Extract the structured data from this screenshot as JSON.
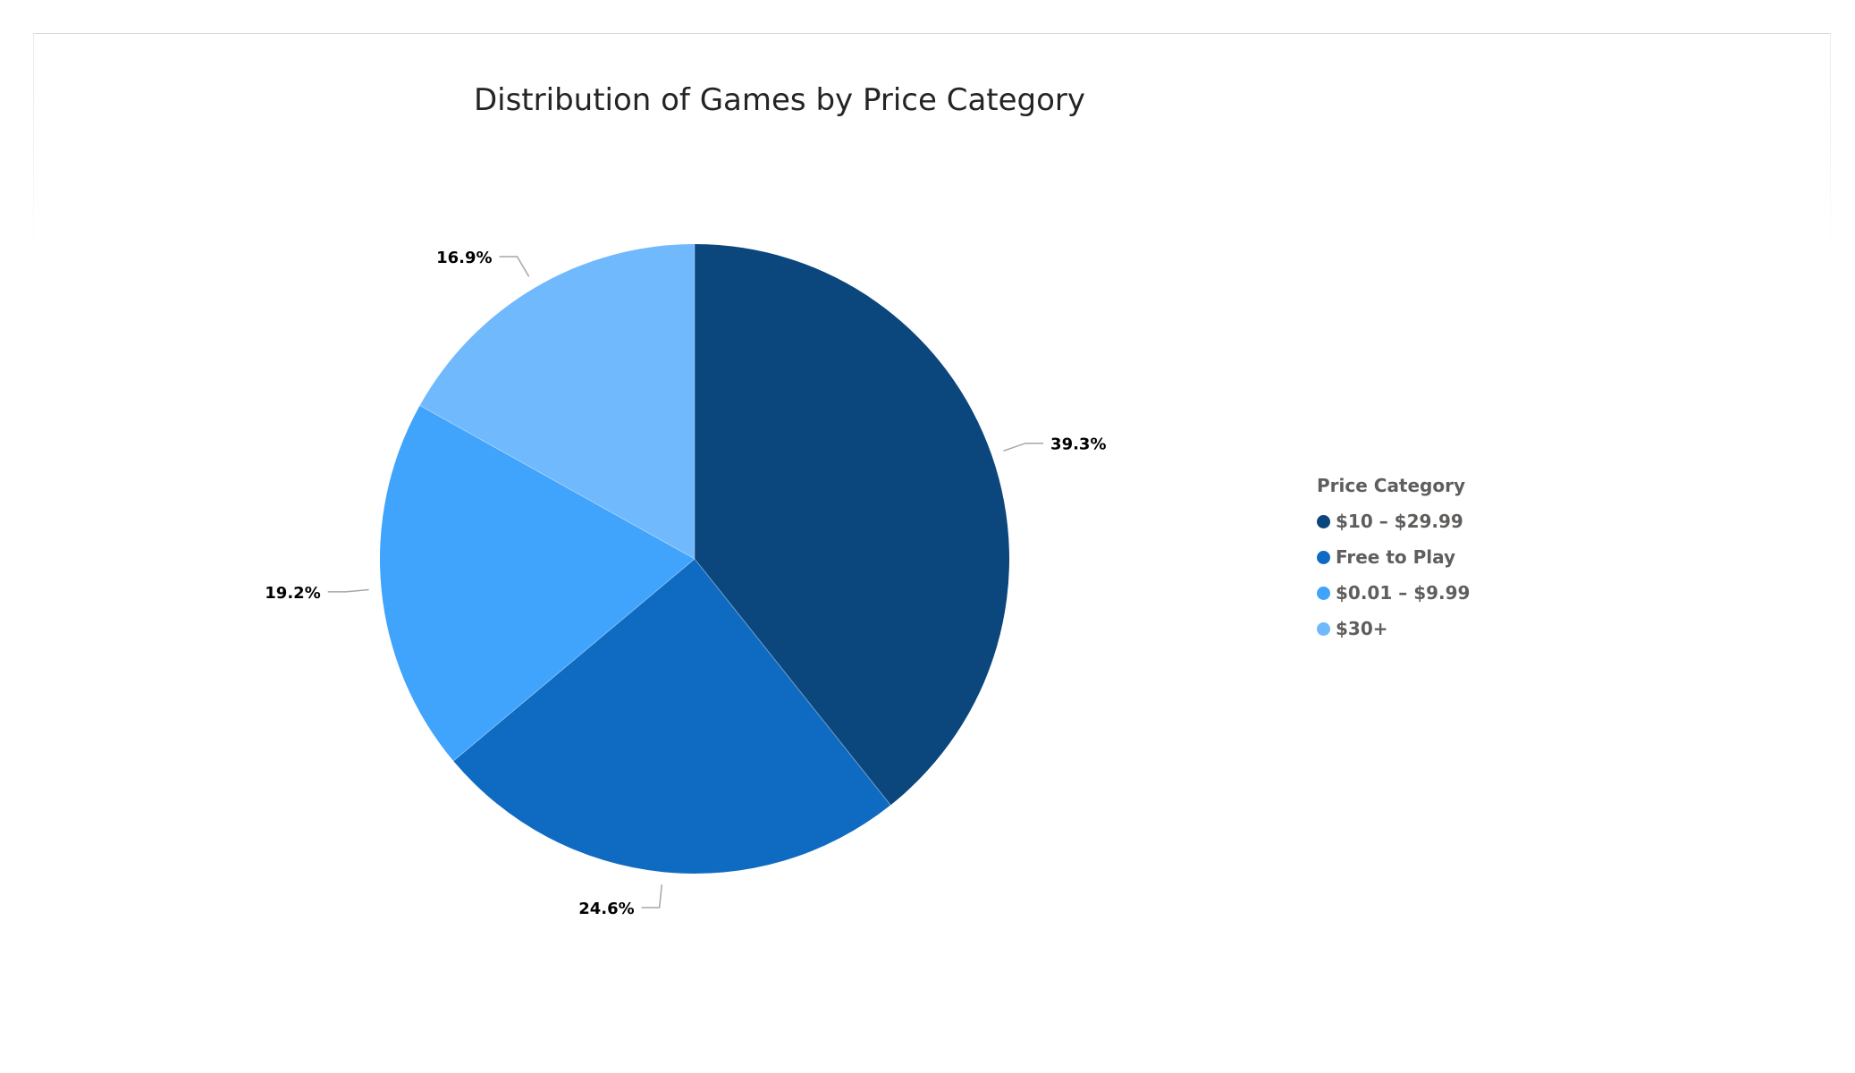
{
  "chart_data": {
    "type": "pie",
    "title": "Distribution of Games by Price Category",
    "legend_title": "Price Category",
    "legend_position": "right",
    "slices": [
      {
        "label": "$10 – $29.99",
        "value": 39.3,
        "display": "39.3%",
        "color": "#0b467d"
      },
      {
        "label": "Free to Play",
        "value": 24.6,
        "display": "24.6%",
        "color": "#0f6bc1"
      },
      {
        "label": "$0.01 – $9.99",
        "value": 19.2,
        "display": "19.2%",
        "color": "#40a3fc"
      },
      {
        "label": "$30+",
        "value": 16.9,
        "display": "16.9%",
        "color": "#70b9fd"
      }
    ]
  }
}
